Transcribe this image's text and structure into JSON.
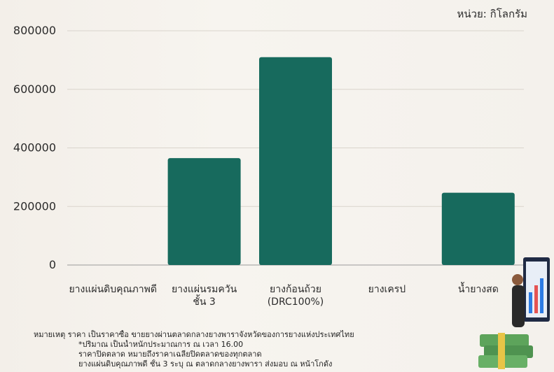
{
  "chart_data": {
    "type": "bar",
    "unit_label": "หน่วย: กิโลกรัม",
    "categories": [
      [
        "ยางแผ่นดิบคุณภาพดี"
      ],
      [
        "ยางแผ่นรมควัน",
        "ชั้น 3"
      ],
      [
        "ยางก้อนถ้วย",
        "(DRC100%)"
      ],
      [
        "ยางเครป"
      ],
      [
        "น้ำยางสด"
      ]
    ],
    "values": [
      0,
      365000,
      710000,
      0,
      247000
    ],
    "ylim": [
      0,
      800000
    ],
    "yticks": [
      0,
      200000,
      400000,
      600000,
      800000
    ],
    "ytick_labels": [
      "0",
      "200000",
      "400000",
      "600000",
      "800000"
    ],
    "grid": true,
    "bar_color": "#176a5d"
  },
  "notes": {
    "line1": "หมายเหตุ ราคา เป็นราคาซื้อ ขายยางผ่านตลาดกลางยางพาราจังหวัดของการยางแห่งประเทศไทย",
    "line2": "*ปริมาณ เป็นน้ำหนักประมาณการ ณ เวลา 16.00",
    "line3": "ราคาปิดตลาด หมายถึงราคาเฉลี่ยปิดตลาดของทุกตลาด",
    "line4": "ยางแผ่นดิบคุณภาพดี ชั้น 3 ระบุ ณ ตลาดกลางยางพารา ส่งมอบ ณ หน้าโกดัง"
  }
}
